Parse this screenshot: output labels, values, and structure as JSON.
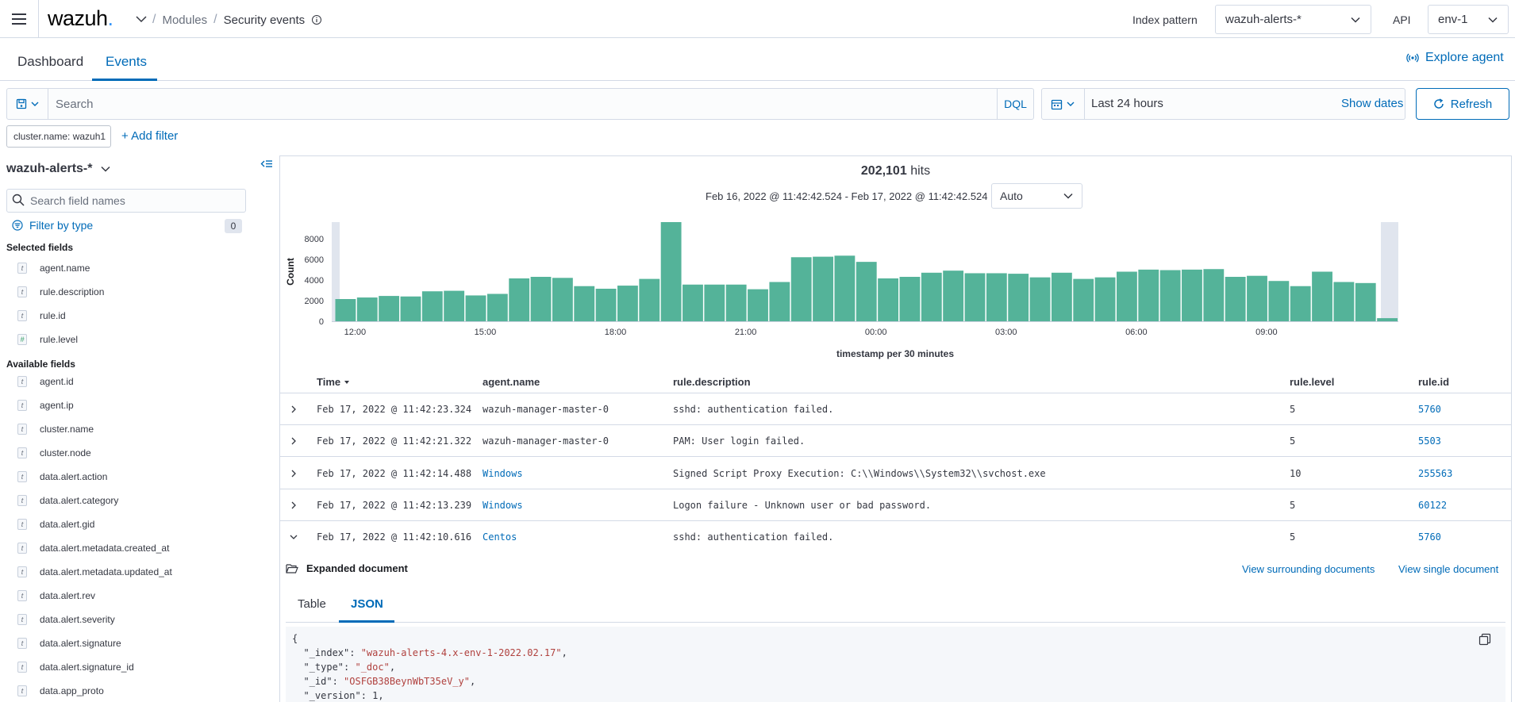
{
  "header": {
    "logo": "wazuh",
    "logo_dot": ".",
    "breadcrumb_modules": "Modules",
    "breadcrumb_current": "Security events",
    "index_pattern_label": "Index pattern",
    "index_pattern_value": "wazuh-alerts-*",
    "api_label": "API",
    "api_value": "env-1"
  },
  "tabs": {
    "dashboard": "Dashboard",
    "events": "Events",
    "explore_agent": "Explore agent"
  },
  "search": {
    "placeholder": "Search",
    "language": "DQL",
    "date_range": "Last 24 hours",
    "show_dates": "Show dates",
    "refresh": "Refresh"
  },
  "filters": {
    "pill": "cluster.name: wazuh1",
    "add_filter": "+ Add filter"
  },
  "sidebar": {
    "index_pattern": "wazuh-alerts-*",
    "search_placeholder": "Search field names",
    "filter_by_type": "Filter by type",
    "filter_count": "0",
    "selected_title": "Selected fields",
    "selected_fields": [
      {
        "type": "t",
        "name": "agent.name"
      },
      {
        "type": "t",
        "name": "rule.description"
      },
      {
        "type": "t",
        "name": "rule.id"
      },
      {
        "type": "#",
        "name": "rule.level"
      }
    ],
    "available_title": "Available fields",
    "available_fields": [
      {
        "type": "t",
        "name": "agent.id"
      },
      {
        "type": "t",
        "name": "agent.ip"
      },
      {
        "type": "t",
        "name": "cluster.name"
      },
      {
        "type": "t",
        "name": "cluster.node"
      },
      {
        "type": "t",
        "name": "data.alert.action"
      },
      {
        "type": "t",
        "name": "data.alert.category"
      },
      {
        "type": "t",
        "name": "data.alert.gid"
      },
      {
        "type": "t",
        "name": "data.alert.metadata.created_at"
      },
      {
        "type": "t",
        "name": "data.alert.metadata.updated_at"
      },
      {
        "type": "t",
        "name": "data.alert.rev"
      },
      {
        "type": "t",
        "name": "data.alert.severity"
      },
      {
        "type": "t",
        "name": "data.alert.signature"
      },
      {
        "type": "t",
        "name": "data.alert.signature_id"
      },
      {
        "type": "t",
        "name": "data.app_proto"
      }
    ]
  },
  "summary": {
    "hits_count": "202,101",
    "hits_label": "hits",
    "range": "Feb 16, 2022 @ 11:42:42.524 - Feb 17, 2022 @ 11:42:42.524",
    "interval": "Auto"
  },
  "chart_data": {
    "type": "bar",
    "xlabel": "timestamp per 30 minutes",
    "ylabel": "Count",
    "ylim": [
      0,
      9600
    ],
    "yticks": [
      0,
      2000,
      4000,
      6000,
      8000
    ],
    "xticks": [
      {
        "label": "12:00",
        "index": 1
      },
      {
        "label": "15:00",
        "index": 7
      },
      {
        "label": "18:00",
        "index": 13
      },
      {
        "label": "21:00",
        "index": 19
      },
      {
        "label": "00:00",
        "index": 25
      },
      {
        "label": "03:00",
        "index": 31
      },
      {
        "label": "06:00",
        "index": 37
      },
      {
        "label": "09:00",
        "index": 43
      }
    ],
    "values": [
      2150,
      2300,
      2450,
      2400,
      2900,
      2950,
      2500,
      2650,
      4150,
      4300,
      4200,
      3400,
      3150,
      3450,
      4100,
      9600,
      3550,
      3550,
      3550,
      3100,
      3800,
      6200,
      6250,
      6350,
      5750,
      4150,
      4300,
      4700,
      4900,
      4650,
      4650,
      4600,
      4250,
      4700,
      4100,
      4250,
      4800,
      5000,
      4950,
      5000,
      5050,
      4300,
      4400,
      3900,
      3400,
      4800,
      3800,
      3700,
      300
    ],
    "bar_color": "#54b399"
  },
  "table": {
    "columns": [
      "Time",
      "agent.name",
      "rule.description",
      "rule.level",
      "rule.id"
    ],
    "rows": [
      {
        "time": "Feb 17, 2022 @ 11:42:23.324",
        "agent": "wazuh-manager-master-0",
        "agent_link": false,
        "desc": "sshd: authentication failed.",
        "level": "5",
        "id": "5760"
      },
      {
        "time": "Feb 17, 2022 @ 11:42:21.322",
        "agent": "wazuh-manager-master-0",
        "agent_link": false,
        "desc": "PAM: User login failed.",
        "level": "5",
        "id": "5503"
      },
      {
        "time": "Feb 17, 2022 @ 11:42:14.488",
        "agent": "Windows",
        "agent_link": true,
        "desc": "Signed Script Proxy Execution: C:\\\\Windows\\\\System32\\\\svchost.exe",
        "level": "10",
        "id": "255563"
      },
      {
        "time": "Feb 17, 2022 @ 11:42:13.239",
        "agent": "Windows",
        "agent_link": true,
        "desc": "Logon failure - Unknown user or bad password.",
        "level": "5",
        "id": "60122"
      },
      {
        "time": "Feb 17, 2022 @ 11:42:10.616",
        "agent": "Centos",
        "agent_link": true,
        "desc": "sshd: authentication failed.",
        "level": "5",
        "id": "5760"
      }
    ]
  },
  "expanded": {
    "title": "Expanded document",
    "view_surrounding": "View surrounding documents",
    "view_single": "View single document",
    "tab_table": "Table",
    "tab_json": "JSON",
    "json_open": "{",
    "json_lines": [
      {
        "key": "\"_index\"",
        "value": "\"wazuh-alerts-4.x-env-1-2022.02.17\"",
        "str": true
      },
      {
        "key": "\"_type\"",
        "value": "\"_doc\"",
        "str": true
      },
      {
        "key": "\"_id\"",
        "value": "\"OSFGB38BeynWbT35eV_y\"",
        "str": true
      },
      {
        "key": "\"_version\"",
        "value": "1",
        "str": false
      }
    ]
  }
}
